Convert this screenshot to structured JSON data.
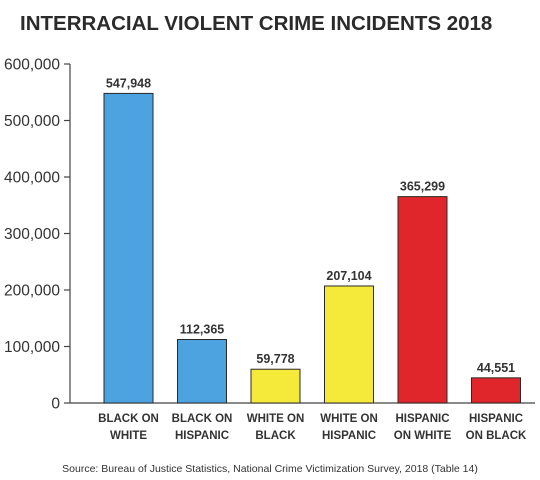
{
  "chart_data": {
    "type": "bar",
    "title": "INTERRACIAL VIOLENT CRIME INCIDENTS 2018",
    "categories": [
      [
        "BLACK ON",
        "WHITE"
      ],
      [
        "BLACK ON",
        "HISPANIC"
      ],
      [
        "WHITE ON",
        "BLACK"
      ],
      [
        "WHITE ON",
        "HISPANIC"
      ],
      [
        "HISPANIC",
        "ON WHITE"
      ],
      [
        "HISPANIC",
        "ON BLACK"
      ]
    ],
    "values": [
      547948,
      112365,
      59778,
      207104,
      365299,
      44551
    ],
    "value_labels": [
      "547,948",
      "112,365",
      "59,778",
      "207,104",
      "365,299",
      "44,551"
    ],
    "bar_colors": [
      "#4da3e0",
      "#4da3e0",
      "#f5e93a",
      "#f5e93a",
      "#e0262b",
      "#e0262b"
    ],
    "bar_stroke": "#2a2a2a",
    "ylim": [
      0,
      600000
    ],
    "yticks": [
      0,
      100000,
      200000,
      300000,
      400000,
      500000,
      600000
    ],
    "ytick_labels": [
      "0",
      "100,000",
      "200,000",
      "300,000",
      "400,000",
      "500,000",
      "600,000"
    ],
    "grid": false,
    "source": "Source: Bureau of Justice Statistics, National Crime Victimization Survey, 2018 (Table 14)"
  }
}
